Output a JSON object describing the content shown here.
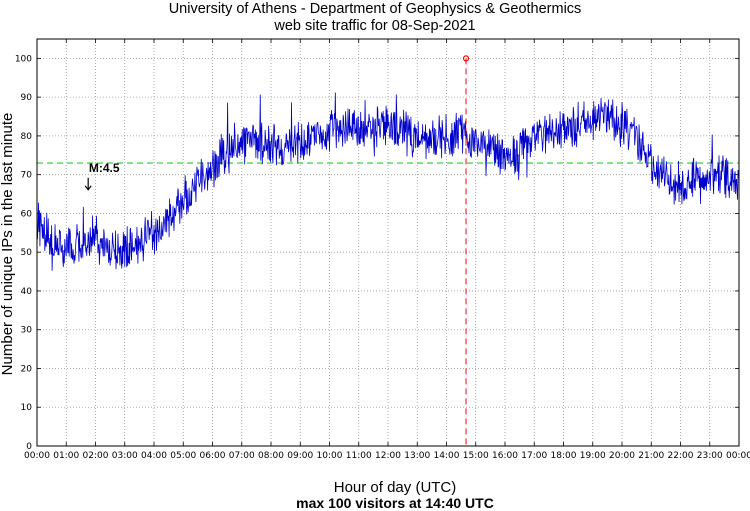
{
  "chart_data": {
    "type": "line",
    "title_line1": "University of Athens - Department of Geophysics & Geothermics",
    "title_line2": "web site traffic for 08-Sep-2021",
    "xlabel": "Hour of day (UTC)",
    "ylabel": "Number of unique IPs in the last minute",
    "subtitle": "max 100 visitors at 14:40 UTC",
    "xlim": [
      0,
      24
    ],
    "ylim": [
      0,
      105
    ],
    "grid": true,
    "x_ticks": [
      "00:00",
      "01:00",
      "02:00",
      "03:00",
      "04:00",
      "05:00",
      "06:00",
      "07:00",
      "08:00",
      "09:00",
      "10:00",
      "11:00",
      "12:00",
      "13:00",
      "14:00",
      "15:00",
      "16:00",
      "17:00",
      "18:00",
      "19:00",
      "20:00",
      "21:00",
      "22:00",
      "23:00",
      "00:00"
    ],
    "y_ticks": [
      0,
      10,
      20,
      30,
      40,
      50,
      60,
      70,
      80,
      90,
      100
    ],
    "series": [
      {
        "color": "#0000cc",
        "x_unit": "hour",
        "x": [
          0,
          0.5,
          1,
          1.5,
          2,
          2.5,
          3,
          3.5,
          4,
          4.5,
          5,
          5.5,
          6,
          6.5,
          7,
          7.5,
          8,
          8.5,
          9,
          9.5,
          10,
          10.5,
          11,
          11.5,
          12,
          12.5,
          13,
          13.5,
          14,
          14.5,
          15,
          15.5,
          16,
          16.5,
          17,
          17.5,
          18,
          18.5,
          19,
          19.5,
          20,
          20.5,
          21,
          21.5,
          22,
          22.5,
          23,
          23.5,
          24
        ],
        "y": [
          58,
          52,
          51,
          52,
          55,
          50,
          51,
          53,
          55,
          58,
          64,
          68,
          72,
          76,
          78,
          79,
          77,
          77,
          78,
          80,
          81,
          82,
          82,
          82,
          83,
          81,
          79,
          79,
          80,
          81,
          79,
          77,
          73,
          76,
          80,
          80,
          82,
          83,
          84,
          85,
          83,
          80,
          73,
          69,
          68,
          68,
          69,
          69,
          69
        ]
      }
    ],
    "mean_line": {
      "value": 73,
      "color": "#44dd44"
    },
    "max_marker": {
      "x": 14.667,
      "y": 100,
      "color": "#ff0000"
    },
    "annotation": {
      "text": "M:4.5",
      "x": 1.75,
      "y": 63
    }
  }
}
